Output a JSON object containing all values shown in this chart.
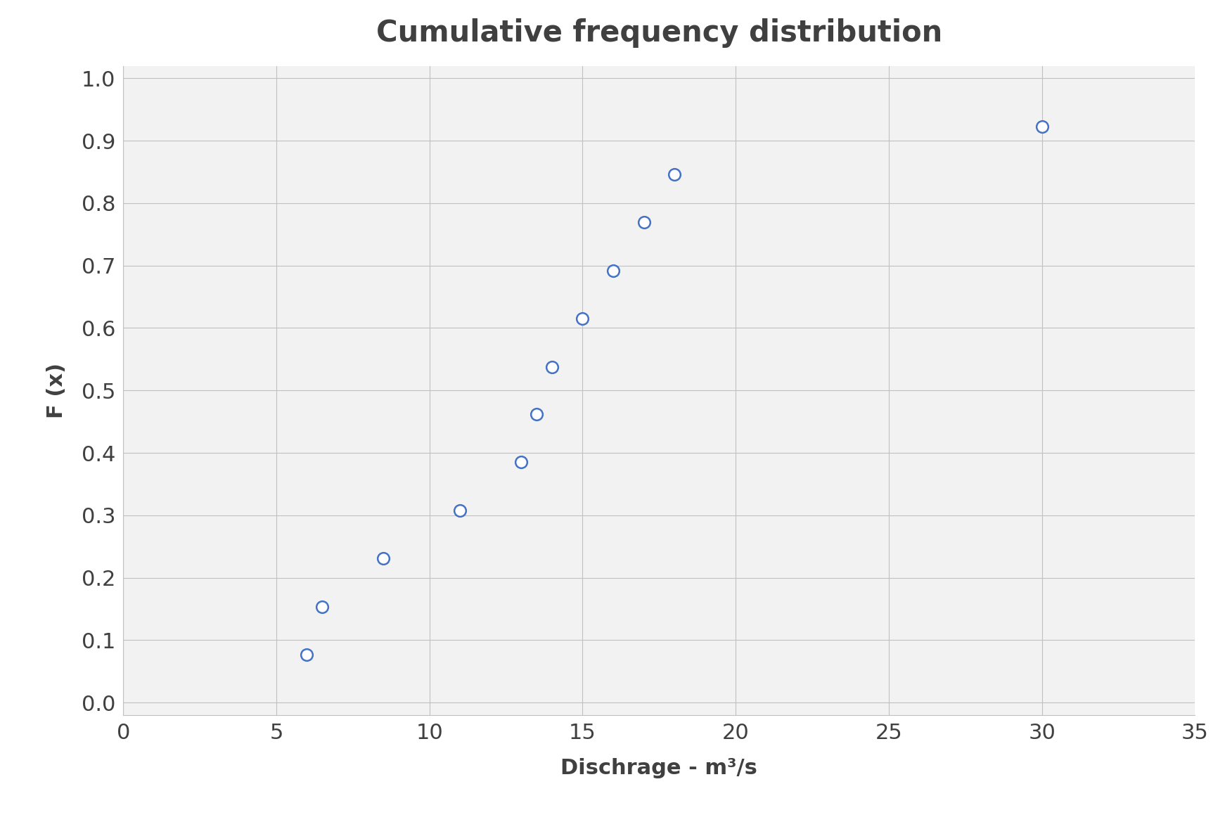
{
  "title": "Cumulative frequency distribution",
  "xlabel": "Dischrage - m³/s",
  "ylabel": "F (x)",
  "x_data": [
    6.0,
    6.5,
    8.5,
    11.0,
    13.0,
    13.5,
    14.0,
    15.0,
    16.0,
    17.0,
    18.0,
    30.0
  ],
  "y_data": [
    0.077,
    0.154,
    0.231,
    0.308,
    0.385,
    0.462,
    0.538,
    0.615,
    0.692,
    0.769,
    0.846,
    0.923
  ],
  "xlim": [
    0,
    35
  ],
  "ylim": [
    0.0,
    1.0
  ],
  "xticks": [
    0,
    5,
    10,
    15,
    20,
    25,
    30,
    35
  ],
  "yticks": [
    0.0,
    0.1,
    0.2,
    0.3,
    0.4,
    0.5,
    0.6,
    0.7,
    0.8,
    0.9,
    1.0
  ],
  "marker_color": "#4472C4",
  "marker_facecolor": "white",
  "marker_size": 12,
  "marker_linewidth": 1.8,
  "grid_color": "#C0C0C0",
  "plot_bg_color": "#F2F2F2",
  "fig_bg_color": "#FFFFFF",
  "title_fontsize": 30,
  "label_fontsize": 22,
  "tick_fontsize": 22,
  "tick_color": "#404040",
  "label_color": "#404040"
}
